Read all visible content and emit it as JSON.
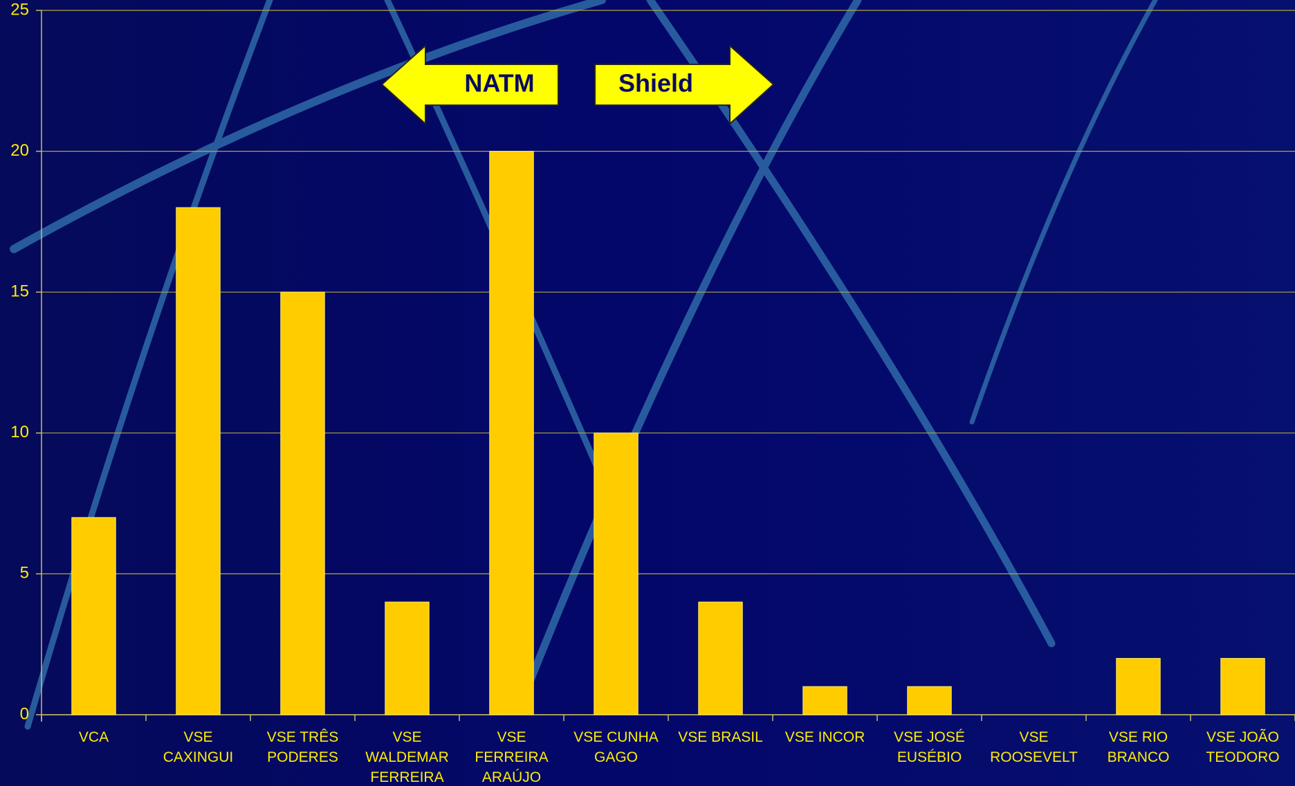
{
  "chart_data": {
    "type": "bar",
    "categories": [
      "VCA",
      "VSE CAXINGUI",
      "VSE TRÊS PODERES",
      "VSE WALDEMAR FERREIRA",
      "VSE FERREIRA ARAÚJO",
      "VSE CUNHA GAGO",
      "VSE BRASIL",
      "VSE INCOR",
      "VSE JOSÉ EUSÉBIO",
      "VSE ROOSEVELT",
      "VSE RIO BRANCO",
      "VSE JOÃO TEODORO"
    ],
    "values": [
      7,
      18,
      15,
      4,
      20,
      10,
      4,
      1,
      1,
      0,
      2,
      2
    ],
    "color": "#ffcc00",
    "ylim": [
      0,
      25
    ],
    "yticks": [
      0,
      5,
      10,
      15,
      20,
      25
    ],
    "grid": true,
    "annotations": [
      "NATM",
      "Shield"
    ]
  }
}
